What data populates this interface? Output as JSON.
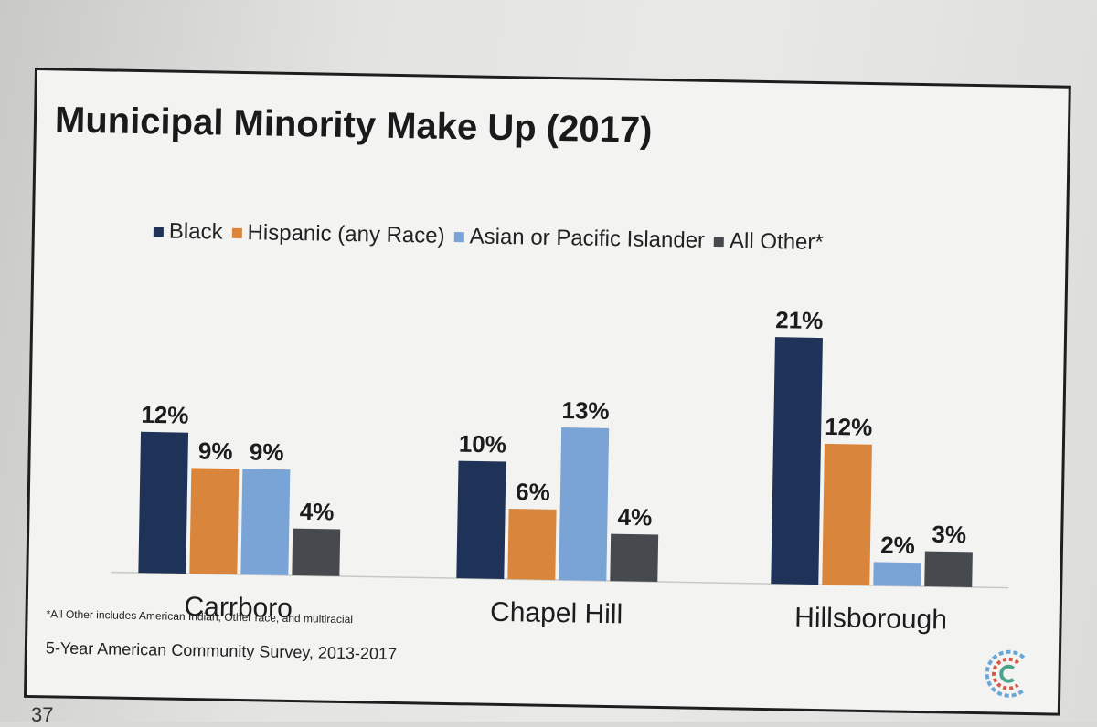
{
  "chart_data": {
    "type": "bar",
    "title": "Municipal Minority Make Up (2017)",
    "categories": [
      "Carrboro",
      "Chapel Hill",
      "Hillsborough"
    ],
    "series": [
      {
        "name": "Black",
        "color": "#1f3358",
        "values": [
          12,
          10,
          21
        ],
        "labels": [
          "12%",
          "10%",
          "21%"
        ]
      },
      {
        "name": "Hispanic (any Race)",
        "color": "#d9853b",
        "values": [
          9,
          6,
          12
        ],
        "labels": [
          "9%",
          "6%",
          "12%"
        ]
      },
      {
        "name": "Asian or Pacific Islander",
        "color": "#7aa3d6",
        "values": [
          9,
          13,
          2
        ],
        "labels": [
          "9%",
          "13%",
          "2%"
        ]
      },
      {
        "name": "All Other*",
        "color": "#46494e",
        "values": [
          4,
          4,
          3
        ],
        "labels": [
          "4%",
          "4%",
          "3%"
        ]
      }
    ],
    "ylim": [
      0,
      21
    ],
    "grid": false,
    "legend_position": "top"
  },
  "footnote": "*All Other includes American Indian, Other race, and multiracial",
  "source": "5-Year American Community Survey, 2013-2017",
  "page_number": "37"
}
